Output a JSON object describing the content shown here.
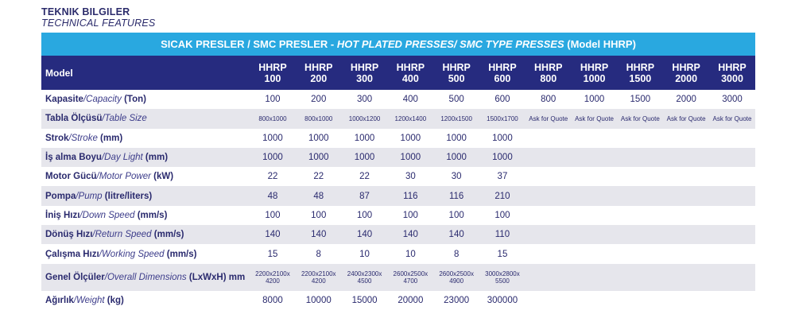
{
  "heading": {
    "tr": "TEKNIK BILGILER",
    "en": "TECHNICAL FEATURES"
  },
  "title": {
    "part1": "SICAK PRESLER / SMC PRESLER - ",
    "part2": "HOT PLATED PRESSES/ SMC TYPE PRESSES",
    "part3": " (Model HHRP)"
  },
  "header": {
    "model_label": "Model",
    "models": [
      {
        "l1": "HHRP",
        "l2": "100"
      },
      {
        "l1": "HHRP",
        "l2": "200"
      },
      {
        "l1": "HHRP",
        "l2": "300"
      },
      {
        "l1": "HHRP",
        "l2": "400"
      },
      {
        "l1": "HHRP",
        "l2": "500"
      },
      {
        "l1": "HHRP",
        "l2": "600"
      },
      {
        "l1": "HHRP",
        "l2": "800"
      },
      {
        "l1": "HHRP",
        "l2": "1000"
      },
      {
        "l1": "HHRP",
        "l2": "1500"
      },
      {
        "l1": "HHRP",
        "l2": "2000"
      },
      {
        "l1": "HHRP",
        "l2": "3000"
      }
    ]
  },
  "rows": [
    {
      "tr": "Kapasite",
      "en": "/Capacity",
      "unit": " (Ton)",
      "values": [
        "100",
        "200",
        "300",
        "400",
        "500",
        "600",
        "800",
        "1000",
        "1500",
        "2000",
        "3000"
      ]
    },
    {
      "tr": "Tabla Ölçüsü",
      "en": "/Table Size",
      "unit": "",
      "values": [
        "800x1000",
        "800x1000",
        "1000x1200",
        "1200x1400",
        "1200x1500",
        "1500x1700",
        "Ask for Quote",
        "Ask for Quote",
        "Ask for Quote",
        "Ask for Quote",
        "Ask for Quote"
      ]
    },
    {
      "tr": "Strok",
      "en": "/Stroke",
      "unit": " (mm)",
      "values": [
        "1000",
        "1000",
        "1000",
        "1000",
        "1000",
        "1000",
        "",
        "",
        "",
        "",
        ""
      ]
    },
    {
      "tr": "İş alma Boyu",
      "en": "/Day Light",
      "unit": " (mm)",
      "values": [
        "1000",
        "1000",
        "1000",
        "1000",
        "1000",
        "1000",
        "",
        "",
        "",
        "",
        ""
      ]
    },
    {
      "tr": "Motor Gücü",
      "en": "/Motor Power",
      "unit": " (kW)",
      "values": [
        "22",
        "22",
        "22",
        "30",
        "30",
        "37",
        "",
        "",
        "",
        "",
        ""
      ]
    },
    {
      "tr": "Pompa",
      "en": "/Pump",
      "unit": " (litre/liters)",
      "values": [
        "48",
        "48",
        "87",
        "116",
        "116",
        "210",
        "",
        "",
        "",
        "",
        ""
      ]
    },
    {
      "tr": "İniş Hızı",
      "en": "/Down Speed",
      "unit": " (mm/s)",
      "values": [
        "100",
        "100",
        "100",
        "100",
        "100",
        "100",
        "",
        "",
        "",
        "",
        ""
      ]
    },
    {
      "tr": "Dönüş Hızı",
      "en": "/Return Speed",
      "unit": " (mm/s)",
      "values": [
        "140",
        "140",
        "140",
        "140",
        "140",
        "110",
        "",
        "",
        "",
        "",
        ""
      ]
    },
    {
      "tr": "Çalışma Hızı",
      "en": "/Working Speed",
      "unit": " (mm/s)",
      "values": [
        "15",
        "8",
        "10",
        "10",
        "8",
        "15",
        "",
        "",
        "",
        "",
        ""
      ]
    },
    {
      "tr": "Genel Ölçüler",
      "en": "/Overall Dimensions",
      "unit": " (LxWxH) mm",
      "values": [
        "2200x2100x 4200",
        "2200x2100x 4200",
        "2400x2300x 4500",
        "2600x2500x 4700",
        "2600x2500x 4900",
        "3000x2800x 5500",
        "",
        "",
        "",
        "",
        ""
      ]
    },
    {
      "tr": "Ağırlık",
      "en": "/Weight",
      "unit": " (kg)",
      "values": [
        "8000",
        "10000",
        "15000",
        "20000",
        "23000",
        "300000",
        "",
        "",
        "",
        "",
        ""
      ]
    }
  ],
  "colors": {
    "title_bar": "#29a8e0",
    "header_bg": "#262b7f",
    "stripe": "#e6e6ec",
    "text": "#2a2a6e"
  }
}
